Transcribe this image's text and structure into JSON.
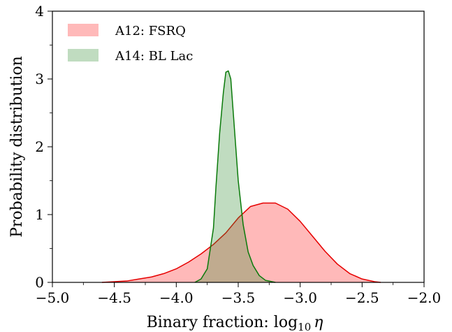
{
  "chart_data": {
    "type": "area",
    "xlabel": "Binary fraction: log",
    "xlabel_sub": "10",
    "xlabel_symbol": "η",
    "ylabel": "Probability distribution",
    "xlim": [
      -5.0,
      -2.0
    ],
    "ylim": [
      0,
      4
    ],
    "x_ticks": [
      -5.0,
      -4.5,
      -4.0,
      -3.5,
      -3.0,
      -2.5,
      -2.0
    ],
    "x_tick_labels": [
      "−5.0",
      "−4.5",
      "−4.0",
      "−3.5",
      "−3.0",
      "−2.5",
      "−2.0"
    ],
    "y_ticks": [
      0,
      1,
      2,
      3,
      4
    ],
    "y_tick_labels": [
      "0",
      "1",
      "2",
      "3",
      "4"
    ],
    "grid": false,
    "legend_position": "top-left",
    "series": [
      {
        "name": "A12: FSRQ",
        "fill": "#ff8080",
        "fill_opacity": 0.55,
        "line": "#e60000",
        "x": [
          -4.6,
          -4.4,
          -4.3,
          -4.2,
          -4.1,
          -4.0,
          -3.9,
          -3.8,
          -3.7,
          -3.6,
          -3.5,
          -3.4,
          -3.3,
          -3.2,
          -3.1,
          -3.0,
          -2.9,
          -2.8,
          -2.7,
          -2.6,
          -2.5,
          -2.4,
          -2.35
        ],
        "y": [
          0.0,
          0.02,
          0.05,
          0.08,
          0.13,
          0.2,
          0.3,
          0.42,
          0.56,
          0.73,
          0.95,
          1.12,
          1.17,
          1.17,
          1.08,
          0.9,
          0.68,
          0.46,
          0.27,
          0.13,
          0.05,
          0.01,
          0.0
        ]
      },
      {
        "name": "A14: BL Lac",
        "fill": "#2e8b2e",
        "fill_opacity": 0.3,
        "line": "#0a7a0a",
        "x": [
          -3.85,
          -3.8,
          -3.75,
          -3.7,
          -3.68,
          -3.65,
          -3.62,
          -3.6,
          -3.58,
          -3.56,
          -3.54,
          -3.5,
          -3.46,
          -3.42,
          -3.38,
          -3.33,
          -3.28,
          -3.2
        ],
        "y": [
          0.0,
          0.05,
          0.2,
          0.8,
          1.4,
          2.2,
          2.8,
          3.1,
          3.12,
          3.0,
          2.5,
          1.5,
          0.85,
          0.45,
          0.25,
          0.1,
          0.03,
          0.0
        ]
      }
    ]
  }
}
